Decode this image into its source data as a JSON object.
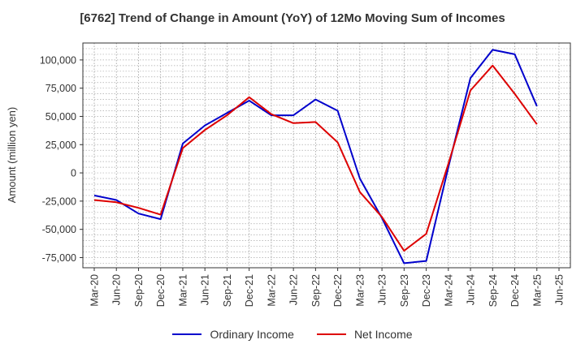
{
  "chart_data": {
    "type": "line",
    "title": "[6762]  Trend of Change in Amount (YoY) of 12Mo Moving Sum of Incomes",
    "ylabel": "Amount (million yen)",
    "xlabel": "",
    "x": [
      "Mar-20",
      "Jun-20",
      "Sep-20",
      "Dec-20",
      "Mar-21",
      "Jun-21",
      "Sep-21",
      "Dec-21",
      "Mar-22",
      "Jun-22",
      "Sep-22",
      "Dec-22",
      "Mar-23",
      "Jun-23",
      "Sep-23",
      "Dec-23",
      "Mar-24",
      "Jun-24",
      "Sep-24",
      "Dec-24",
      "Mar-25",
      "Jun-25"
    ],
    "yticks": [
      -75000,
      -50000,
      -25000,
      0,
      25000,
      50000,
      75000,
      100000
    ],
    "ytick_labels": [
      "-75,000",
      "-50,000",
      "-25,000",
      "0",
      "25,000",
      "50,000",
      "75,000",
      "100,000"
    ],
    "ylim": [
      -84000,
      115000
    ],
    "grid": true,
    "legend_position": "bottom",
    "series": [
      {
        "name": "Ordinary Income",
        "color": "#0000cc",
        "values": [
          -20000,
          -24000,
          -36000,
          -41000,
          26000,
          42000,
          53000,
          64000,
          51000,
          51000,
          65000,
          55000,
          -5000,
          -40000,
          -80000,
          -78000,
          5000,
          84000,
          109000,
          105000,
          59000,
          null
        ]
      },
      {
        "name": "Net Income",
        "color": "#dd0000",
        "values": [
          -24000,
          -26000,
          -31000,
          -37000,
          22000,
          38000,
          51000,
          67000,
          52000,
          44000,
          45000,
          27000,
          -17000,
          -39000,
          -69000,
          -54000,
          8000,
          73000,
          95000,
          70000,
          43000,
          null
        ]
      }
    ]
  }
}
